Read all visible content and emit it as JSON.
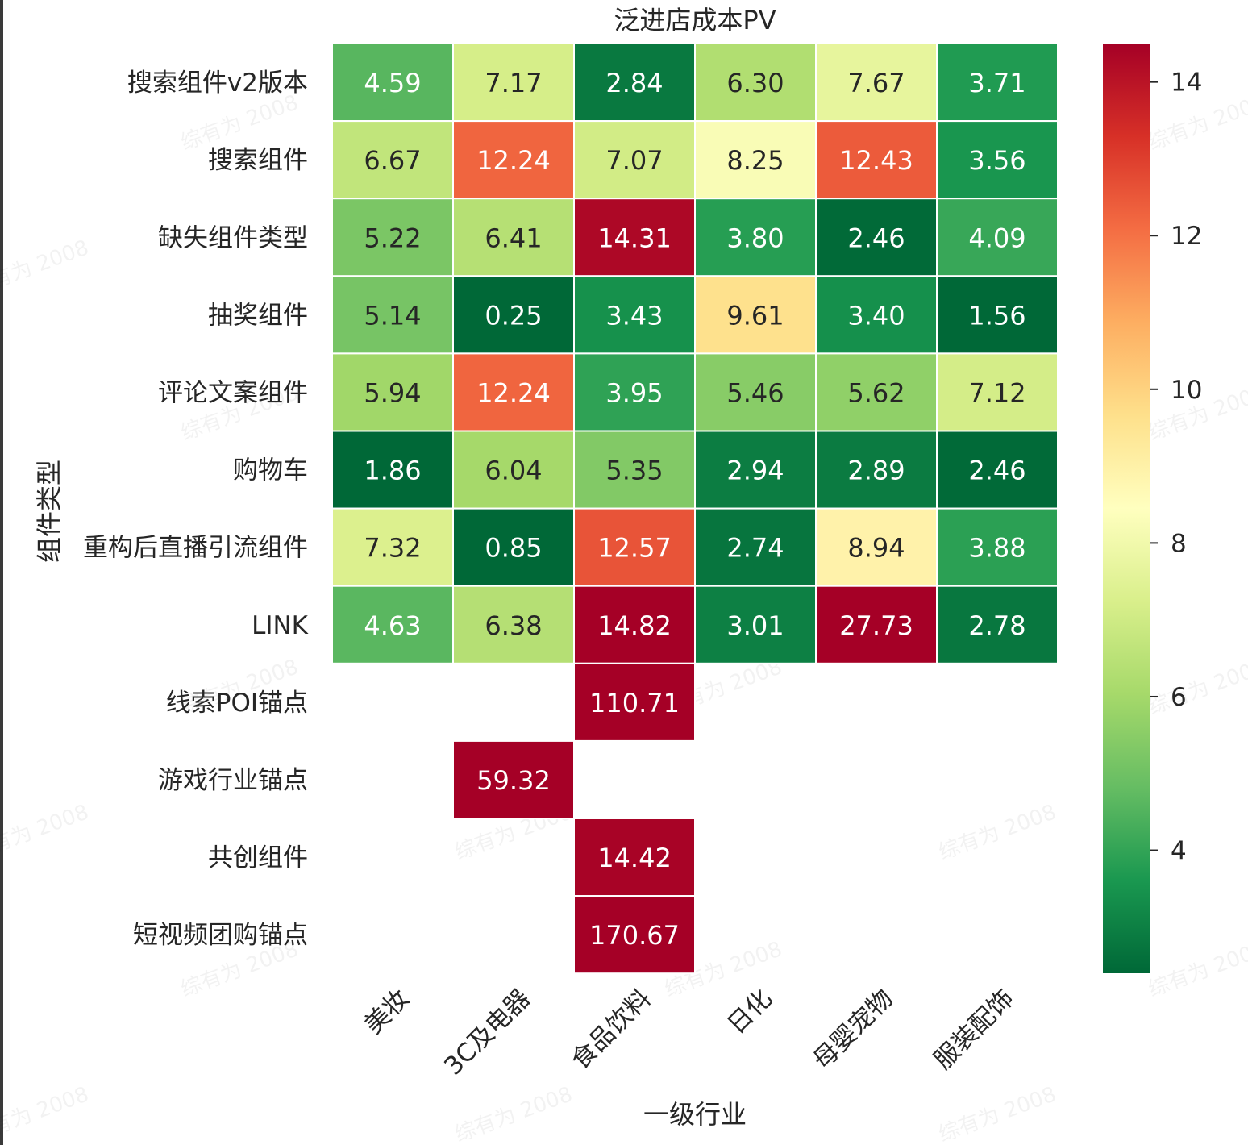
{
  "chart_data": {
    "type": "heatmap",
    "title": "泛进店成本PV",
    "xlabel": "一级行业",
    "ylabel": "组件类型",
    "x": [
      "美妆",
      "3C及电器",
      "食品饮料",
      "日化",
      "母婴宠物",
      "服装配饰"
    ],
    "y": [
      "搜索组件v2版本",
      "搜索组件",
      "缺失组件类型",
      "抽奖组件",
      "评论文案组件",
      "购物车",
      "重构后直播引流组件",
      "LINK",
      "线索POI锚点",
      "游戏行业锚点",
      "共创组件",
      "短视频团购锚点"
    ],
    "values": [
      [
        4.59,
        7.17,
        2.84,
        6.3,
        7.67,
        3.71
      ],
      [
        6.67,
        12.24,
        7.07,
        8.25,
        12.43,
        3.56
      ],
      [
        5.22,
        6.41,
        14.31,
        3.8,
        2.46,
        4.09
      ],
      [
        5.14,
        0.25,
        3.43,
        9.61,
        3.4,
        1.56
      ],
      [
        5.94,
        12.24,
        3.95,
        5.46,
        5.62,
        7.12
      ],
      [
        1.86,
        6.04,
        5.35,
        2.94,
        2.89,
        2.46
      ],
      [
        7.32,
        0.85,
        12.57,
        2.74,
        8.94,
        3.88
      ],
      [
        4.63,
        6.38,
        14.82,
        3.01,
        27.73,
        2.78
      ],
      [
        null,
        null,
        110.71,
        null,
        null,
        null
      ],
      [
        null,
        59.32,
        null,
        null,
        null,
        null
      ],
      [
        null,
        null,
        14.42,
        null,
        null,
        null
      ],
      [
        null,
        null,
        170.67,
        null,
        null,
        null
      ]
    ],
    "value_format": "2 decimals",
    "colormap": "RdYlGn_r",
    "color_range": [
      2.4,
      14.5
    ],
    "colorbar_ticks": [
      4,
      6,
      8,
      10,
      12,
      14
    ],
    "watermark_text": "综有为 2008"
  }
}
